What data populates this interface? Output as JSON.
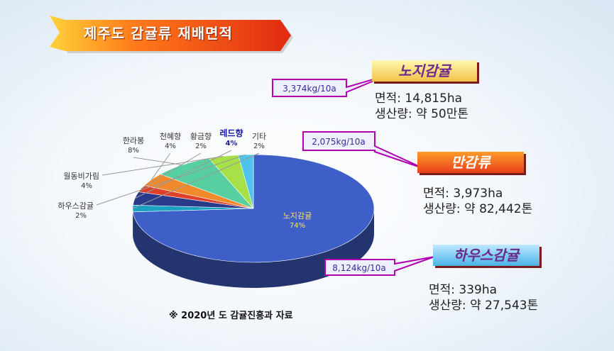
{
  "title": "제주도 감귤류 재배면적",
  "source_note": "※ 2020년 도 감귤진흥과 자료",
  "chart_data": {
    "type": "pie",
    "title": "제주도 감귤류 재배면적",
    "slices": [
      {
        "name": "노지감귤",
        "value": 74,
        "label": "74%",
        "color": "#3f5fc8"
      },
      {
        "name": "하우스감귤",
        "value": 2,
        "label": "2%",
        "color": "#4fc3ea"
      },
      {
        "name": "월동비가림",
        "value": 4,
        "label": "4%",
        "color": "#a8e04a"
      },
      {
        "name": "한라봉",
        "value": 8,
        "label": "8%",
        "color": "#58cfa0"
      },
      {
        "name": "천혜향",
        "value": 4,
        "label": "4%",
        "color": "#f08a2a"
      },
      {
        "name": "황금향",
        "value": 2,
        "label": "2%",
        "color": "#e0402a"
      },
      {
        "name": "레드향",
        "value": 4,
        "label": "4%",
        "color": "#2a3a8a"
      },
      {
        "name": "기타",
        "value": 2,
        "label": "2%",
        "color": "#1aa0c0"
      }
    ]
  },
  "categories": [
    {
      "name": "노지감귤",
      "yield": "3,374kg/10a",
      "area_label": "면적",
      "area": "14,815ha",
      "production_label": "생산량",
      "production": "약 50만톤"
    },
    {
      "name": "만감류",
      "yield": "2,075kg/10a",
      "area_label": "면적",
      "area": "3,973ha",
      "production_label": "생산량",
      "production": "약 82,442톤"
    },
    {
      "name": "하우스감귤",
      "yield": "8,124kg/10a",
      "area_label": "면적",
      "area": "339ha",
      "production_label": "생산량",
      "production": "약 27,543톤"
    }
  ],
  "colors": {
    "title_banner": "#e8401a",
    "callout_border": "#b000b0",
    "callout_fill": "#eef0ff"
  }
}
